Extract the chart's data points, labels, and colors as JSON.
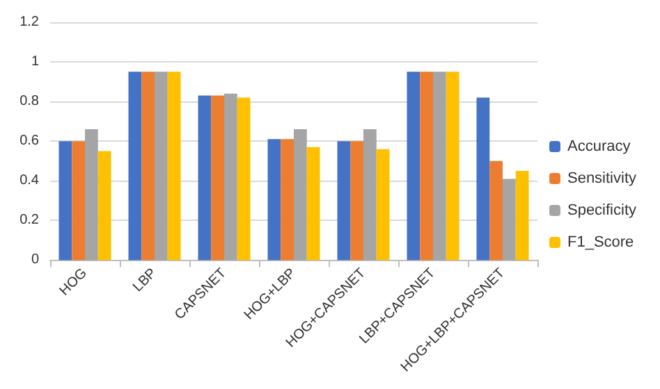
{
  "chart_data": {
    "type": "bar",
    "categories": [
      "HOG",
      "LBP",
      "CAPSNET",
      "HOG+LBP",
      "HOG+CAPSNET",
      "LBP+CAPSNET",
      "HOG+LBP+CAPSNET"
    ],
    "series": [
      {
        "name": "Accuracy",
        "color": "#4472c4",
        "values": [
          0.6,
          0.95,
          0.83,
          0.61,
          0.6,
          0.95,
          0.82
        ]
      },
      {
        "name": "Sensitivity",
        "color": "#ed7d31",
        "values": [
          0.6,
          0.95,
          0.83,
          0.61,
          0.6,
          0.95,
          0.5
        ]
      },
      {
        "name": "Specificity",
        "color": "#a5a5a5",
        "values": [
          0.66,
          0.95,
          0.84,
          0.66,
          0.66,
          0.95,
          0.41
        ]
      },
      {
        "name": "F1_Score",
        "color": "#ffc000",
        "values": [
          0.55,
          0.95,
          0.82,
          0.57,
          0.56,
          0.95,
          0.45
        ]
      }
    ],
    "ylim": [
      0,
      1.2
    ],
    "yticks": [
      0,
      0.2,
      0.4,
      0.6,
      0.8,
      1,
      1.2
    ],
    "grid": "y",
    "legend": "right"
  }
}
